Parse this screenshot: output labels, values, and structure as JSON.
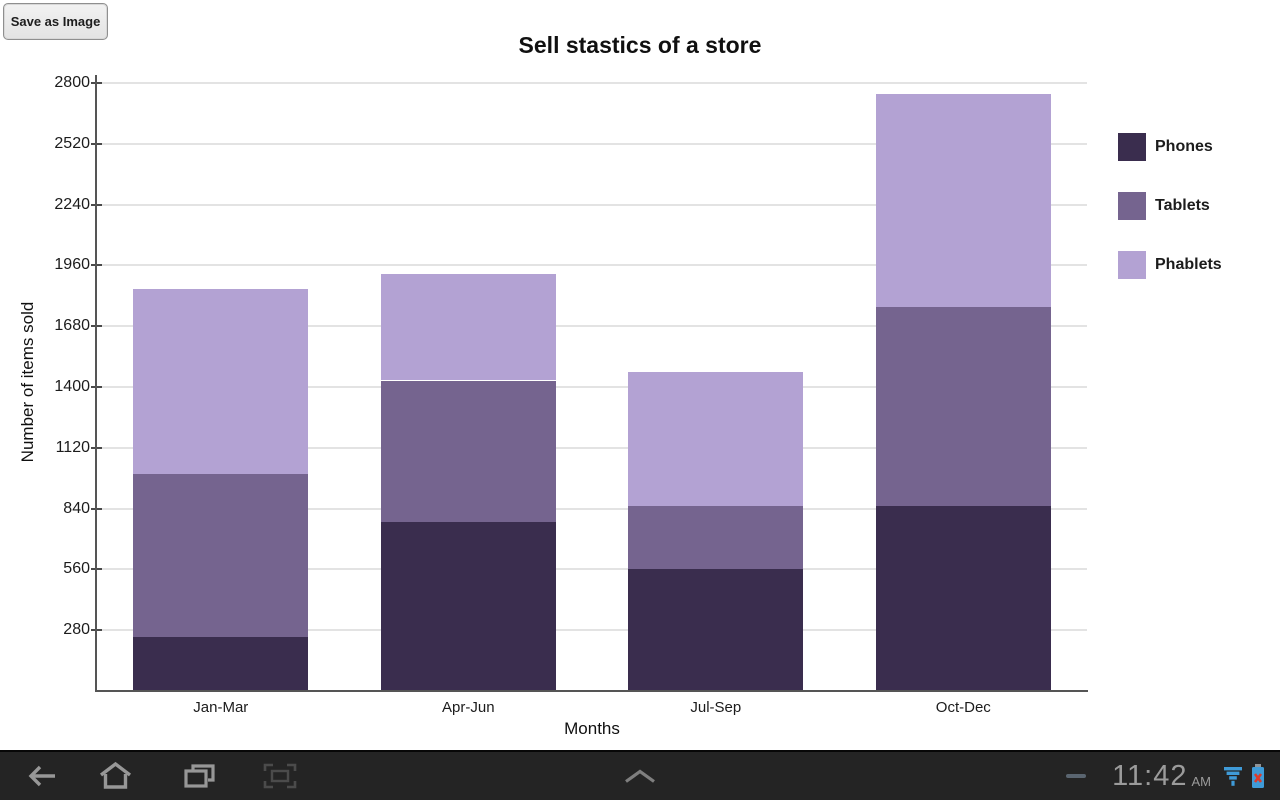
{
  "toolbar": {
    "save_button_label": "Save as Image"
  },
  "chart_data": {
    "type": "bar",
    "stacked": true,
    "title": "Sell stastics of a store",
    "xlabel": "Months",
    "ylabel": "Number of items sold",
    "categories": [
      "Jan-Mar",
      "Apr-Jun",
      "Jul-Sep",
      "Oct-Dec"
    ],
    "series": [
      {
        "name": "Phones",
        "color": "#3a2d4e",
        "values": [
          250,
          780,
          560,
          850
        ]
      },
      {
        "name": "Tablets",
        "color": "#75648f",
        "values": [
          750,
          650,
          290,
          920
        ]
      },
      {
        "name": "Phablets",
        "color": "#b3a2d3",
        "values": [
          850,
          490,
          620,
          980
        ]
      }
    ],
    "y_ticks": [
      280,
      560,
      840,
      1120,
      1400,
      1680,
      1960,
      2240,
      2520,
      2800
    ],
    "ylim": [
      0,
      2870
    ],
    "grid": true,
    "legend_position": "right"
  },
  "system_bar": {
    "time": "11:42",
    "meridiem": "AM",
    "icon_names": [
      "back-icon",
      "home-icon",
      "recent-apps-icon",
      "screen-capture-icon",
      "chevron-up-icon",
      "hide-notifications-icon",
      "signal-icon",
      "battery-alert-icon"
    ],
    "icon_color": "#979797",
    "dim_icon_color": "#4b4b4b",
    "status_accent_color": "#3f9bd8",
    "battery_alert_color": "#dd3a2b",
    "bar_color": "#242424"
  }
}
